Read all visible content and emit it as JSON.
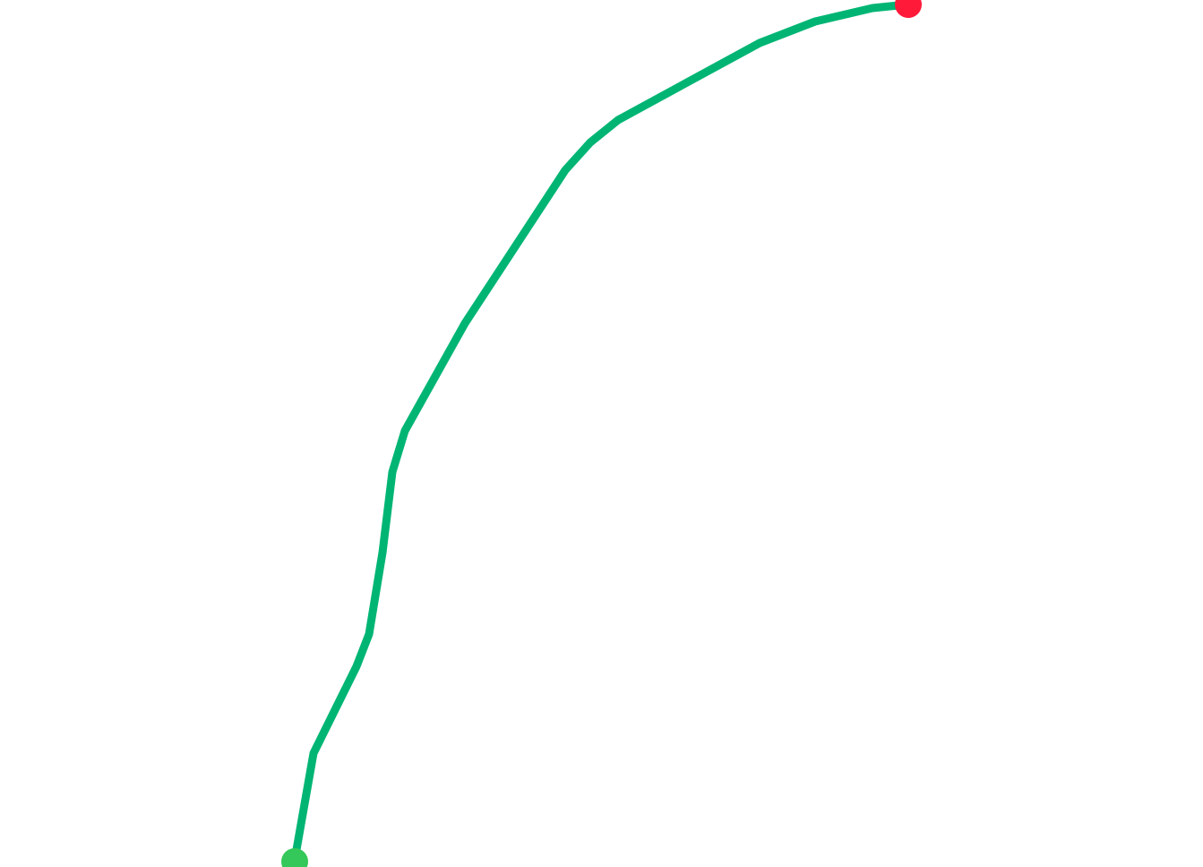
{
  "map": {
    "background_color": "#ffffff",
    "route": {
      "color": "#00b574"
    },
    "start_marker": {
      "icon": "start-marker-icon",
      "color": "#34c759"
    },
    "end_marker": {
      "icon": "end-marker-icon",
      "color": "#ff1a3a"
    }
  }
}
